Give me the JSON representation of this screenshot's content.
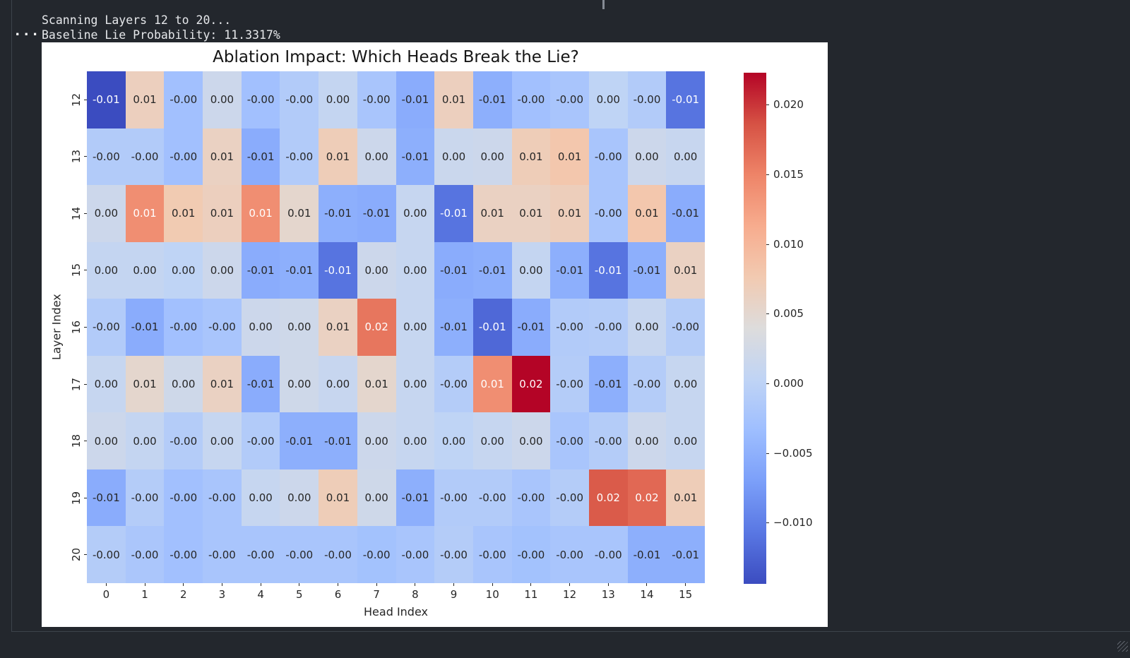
{
  "terminal": {
    "ellipsis": "...",
    "line1": "Scanning Layers 12 to 20...",
    "line2": "Baseline Lie Probability: 11.3317%"
  },
  "colors": {
    "page_background": "#23272d",
    "figure_background": "#ffffff",
    "terminal_text": "#e6e8eb",
    "axis_text": "#262626",
    "colormap_max": "#b40426",
    "colormap_mid": "#dddcdc",
    "colormap_min": "#3b4cc0"
  },
  "chart_data": {
    "type": "heatmap",
    "title": "Ablation Impact: Which Heads Break the Lie?",
    "xlabel": "Head Index",
    "ylabel": "Layer Index",
    "colormap": "coolwarm",
    "legend_position": "right-colorbar",
    "grid": false,
    "x_ticklabels": [
      "0",
      "1",
      "2",
      "3",
      "4",
      "5",
      "6",
      "7",
      "8",
      "9",
      "10",
      "11",
      "12",
      "13",
      "14",
      "15"
    ],
    "y_ticklabels": [
      "12",
      "13",
      "14",
      "15",
      "16",
      "17",
      "18",
      "19",
      "20"
    ],
    "vmin": -0.0144,
    "vmax": 0.0223,
    "colorbar_ticks": [
      0.02,
      0.015,
      0.01,
      0.005,
      0.0,
      -0.005,
      -0.01
    ],
    "colorbar_ticklabels": [
      "0.020",
      "0.015",
      "0.010",
      "0.005",
      "0.000",
      "−0.005",
      "−0.010"
    ],
    "cell_labels": [
      [
        "-0.01",
        "0.01",
        "-0.00",
        "0.00",
        "-0.00",
        "-0.00",
        "0.00",
        "-0.00",
        "-0.01",
        "0.01",
        "-0.01",
        "-0.00",
        "-0.00",
        "0.00",
        "-0.00",
        "-0.01"
      ],
      [
        "-0.00",
        "-0.00",
        "-0.00",
        "0.01",
        "-0.01",
        "-0.00",
        "0.01",
        "0.00",
        "-0.01",
        "0.00",
        "0.00",
        "0.01",
        "0.01",
        "-0.00",
        "0.00",
        "0.00"
      ],
      [
        "0.00",
        "0.01",
        "0.01",
        "0.01",
        "0.01",
        "0.01",
        "-0.01",
        "-0.01",
        "0.00",
        "-0.01",
        "0.01",
        "0.01",
        "0.01",
        "-0.00",
        "0.01",
        "-0.01"
      ],
      [
        "0.00",
        "0.00",
        "0.00",
        "0.00",
        "-0.01",
        "-0.01",
        "-0.01",
        "0.00",
        "0.00",
        "-0.01",
        "-0.01",
        "0.00",
        "-0.01",
        "-0.01",
        "-0.01",
        "0.01"
      ],
      [
        "-0.00",
        "-0.01",
        "-0.00",
        "-0.00",
        "0.00",
        "0.00",
        "0.01",
        "0.02",
        "0.00",
        "-0.01",
        "-0.01",
        "-0.01",
        "-0.00",
        "-0.00",
        "0.00",
        "-0.00"
      ],
      [
        "0.00",
        "0.01",
        "0.00",
        "0.01",
        "-0.01",
        "0.00",
        "0.00",
        "0.01",
        "0.00",
        "-0.00",
        "0.01",
        "0.02",
        "-0.00",
        "-0.01",
        "-0.00",
        "0.00"
      ],
      [
        "0.00",
        "0.00",
        "-0.00",
        "0.00",
        "-0.00",
        "-0.01",
        "-0.01",
        "0.00",
        "0.00",
        "0.00",
        "0.00",
        "0.00",
        "-0.00",
        "-0.00",
        "0.00",
        "0.00"
      ],
      [
        "-0.01",
        "-0.00",
        "-0.00",
        "-0.00",
        "0.00",
        "0.00",
        "0.01",
        "0.00",
        "-0.01",
        "-0.00",
        "-0.00",
        "-0.00",
        "-0.00",
        "0.02",
        "0.02",
        "0.01"
      ],
      [
        "-0.00",
        "-0.00",
        "-0.00",
        "-0.00",
        "-0.00",
        "-0.00",
        "-0.00",
        "-0.00",
        "-0.00",
        "-0.00",
        "-0.00",
        "-0.00",
        "-0.00",
        "-0.00",
        "-0.01",
        "-0.01"
      ]
    ],
    "values": [
      [
        -0.0144,
        0.0065,
        -0.003,
        0.0018,
        -0.003,
        -0.0012,
        0.0008,
        -0.0022,
        -0.0055,
        0.0065,
        -0.0052,
        -0.003,
        -0.0022,
        0.0002,
        -0.0012,
        -0.011
      ],
      [
        -0.0012,
        -0.0012,
        -0.003,
        0.0062,
        -0.0055,
        -0.0012,
        0.007,
        0.0018,
        -0.0052,
        0.0015,
        0.0018,
        0.007,
        0.008,
        -0.0022,
        0.0018,
        0.0012
      ],
      [
        0.0018,
        0.014,
        0.0075,
        0.0065,
        0.014,
        0.0052,
        -0.0052,
        -0.0055,
        0.001,
        -0.011,
        0.0062,
        0.0062,
        0.0068,
        -0.0022,
        0.008,
        -0.0055
      ],
      [
        0.0008,
        0.0008,
        0.0002,
        0.0018,
        -0.0055,
        -0.0052,
        -0.011,
        0.0018,
        0.001,
        -0.0055,
        -0.0052,
        0.0008,
        -0.0052,
        -0.011,
        -0.0052,
        0.0062
      ],
      [
        -0.0012,
        -0.0055,
        -0.003,
        -0.0022,
        0.0018,
        0.002,
        0.0062,
        0.016,
        0.001,
        -0.0052,
        -0.012,
        -0.0055,
        -0.0012,
        -0.001,
        0.0012,
        -0.001
      ],
      [
        0.001,
        0.0052,
        0.002,
        0.0062,
        -0.0055,
        0.002,
        0.0012,
        0.0052,
        0.001,
        -0.001,
        0.014,
        0.0223,
        -0.001,
        -0.0052,
        -0.001,
        0.001
      ],
      [
        0.0018,
        0.0008,
        -0.001,
        0.001,
        -0.0012,
        -0.0052,
        -0.0052,
        0.0018,
        0.001,
        0.0002,
        0.001,
        0.0018,
        -0.0022,
        -0.001,
        0.0018,
        0.001
      ],
      [
        -0.0055,
        -0.001,
        -0.003,
        -0.0022,
        0.001,
        0.0018,
        0.007,
        0.002,
        -0.0052,
        -0.0012,
        -0.0012,
        -0.0022,
        -0.001,
        0.018,
        0.017,
        0.007
      ],
      [
        -0.001,
        -0.002,
        -0.003,
        -0.0022,
        -0.0022,
        -0.0022,
        -0.0022,
        -0.0028,
        -0.0022,
        -0.001,
        -0.0022,
        -0.0028,
        -0.0022,
        -0.0022,
        -0.0052,
        -0.0052
      ]
    ]
  }
}
